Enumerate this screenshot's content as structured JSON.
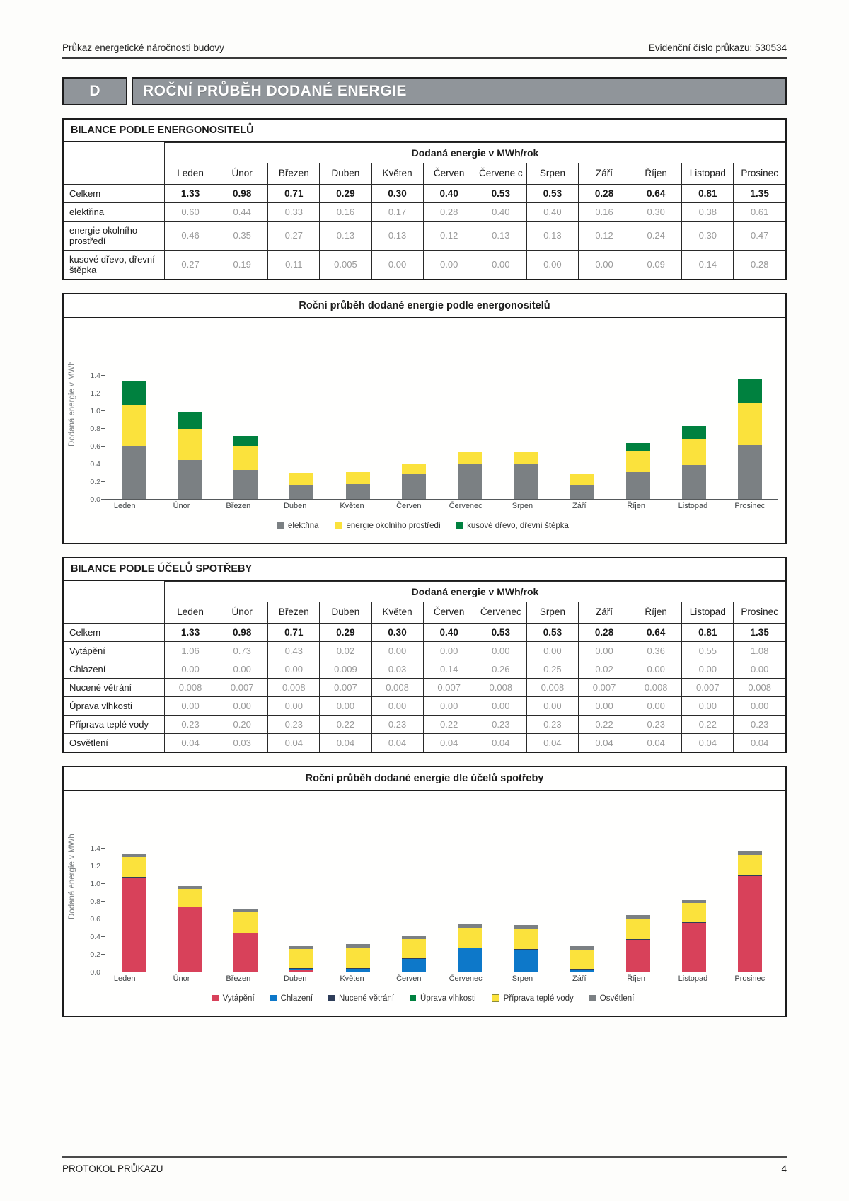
{
  "page": {
    "header_left": "Průkaz energetické náročnosti budovy",
    "header_right": "Evidenční číslo průkazu: 530534",
    "footer_left": "PROTOKOL PRŮKAZU",
    "footer_page": "4"
  },
  "section": {
    "letter": "D",
    "title": "ROČNÍ PRŮBĚH DODANÉ ENERGIE"
  },
  "months": [
    "Leden",
    "Únor",
    "Březen",
    "Duben",
    "Květen",
    "Červen",
    "Červenec",
    "Srpen",
    "Září",
    "Říjen",
    "Listopad",
    "Prosinec"
  ],
  "table1": {
    "title": "BILANCE PODLE ENERGONOSITELŮ",
    "unit_header": "Dodaná energie v MWh/rok",
    "months": [
      "Leden",
      "Únor",
      "Březen",
      "Duben",
      "Květen",
      "Červen",
      "Červene c",
      "Srpen",
      "Září",
      "Říjen",
      "Listopad",
      "Prosinec"
    ],
    "rows": [
      {
        "label": "Celkem",
        "bold": true,
        "values": [
          "1.33",
          "0.98",
          "0.71",
          "0.29",
          "0.30",
          "0.40",
          "0.53",
          "0.53",
          "0.28",
          "0.64",
          "0.81",
          "1.35"
        ]
      },
      {
        "label": "elektřina",
        "bold": false,
        "values": [
          "0.60",
          "0.44",
          "0.33",
          "0.16",
          "0.17",
          "0.28",
          "0.40",
          "0.40",
          "0.16",
          "0.30",
          "0.38",
          "0.61"
        ]
      },
      {
        "label": "energie okolního prostředí",
        "bold": false,
        "values": [
          "0.46",
          "0.35",
          "0.27",
          "0.13",
          "0.13",
          "0.12",
          "0.13",
          "0.13",
          "0.12",
          "0.24",
          "0.30",
          "0.47"
        ]
      },
      {
        "label": "kusové dřevo, dřevní štěpka",
        "bold": false,
        "values": [
          "0.27",
          "0.19",
          "0.11",
          "0.005",
          "0.00",
          "0.00",
          "0.00",
          "0.00",
          "0.00",
          "0.09",
          "0.14",
          "0.28"
        ]
      }
    ]
  },
  "table2": {
    "title": "BILANCE PODLE ÚČELŮ SPOTŘEBY",
    "unit_header": "Dodaná energie v MWh/rok",
    "months": [
      "Leden",
      "Únor",
      "Březen",
      "Duben",
      "Květen",
      "Červen",
      "Červenec",
      "Srpen",
      "Září",
      "Říjen",
      "Listopad",
      "Prosinec"
    ],
    "rows": [
      {
        "label": "Celkem",
        "bold": true,
        "values": [
          "1.33",
          "0.98",
          "0.71",
          "0.29",
          "0.30",
          "0.40",
          "0.53",
          "0.53",
          "0.28",
          "0.64",
          "0.81",
          "1.35"
        ]
      },
      {
        "label": "Vytápění",
        "bold": false,
        "values": [
          "1.06",
          "0.73",
          "0.43",
          "0.02",
          "0.00",
          "0.00",
          "0.00",
          "0.00",
          "0.00",
          "0.36",
          "0.55",
          "1.08"
        ]
      },
      {
        "label": "Chlazení",
        "bold": false,
        "values": [
          "0.00",
          "0.00",
          "0.00",
          "0.009",
          "0.03",
          "0.14",
          "0.26",
          "0.25",
          "0.02",
          "0.00",
          "0.00",
          "0.00"
        ]
      },
      {
        "label": "Nucené větrání",
        "bold": false,
        "values": [
          "0.008",
          "0.007",
          "0.008",
          "0.007",
          "0.008",
          "0.007",
          "0.008",
          "0.008",
          "0.007",
          "0.008",
          "0.007",
          "0.008"
        ]
      },
      {
        "label": "Úprava vlhkosti",
        "bold": false,
        "values": [
          "0.00",
          "0.00",
          "0.00",
          "0.00",
          "0.00",
          "0.00",
          "0.00",
          "0.00",
          "0.00",
          "0.00",
          "0.00",
          "0.00"
        ]
      },
      {
        "label": "Příprava teplé vody",
        "bold": false,
        "values": [
          "0.23",
          "0.20",
          "0.23",
          "0.22",
          "0.23",
          "0.22",
          "0.23",
          "0.23",
          "0.22",
          "0.23",
          "0.22",
          "0.23"
        ]
      },
      {
        "label": "Osvětlení",
        "bold": false,
        "values": [
          "0.04",
          "0.03",
          "0.04",
          "0.04",
          "0.04",
          "0.04",
          "0.04",
          "0.04",
          "0.04",
          "0.04",
          "0.04",
          "0.04"
        ]
      }
    ]
  },
  "chart_data": [
    {
      "type": "bar",
      "stacked": true,
      "title": "Roční průběh dodané energie podle energonositelů",
      "ylabel": "Dodaná energie v MWh",
      "ylim": [
        0,
        1.4
      ],
      "ytick_step": 0.2,
      "grid": false,
      "legend_position": "bottom",
      "categories": [
        "Leden",
        "Únor",
        "Březen",
        "Duben",
        "Květen",
        "Červen",
        "Červenec",
        "Srpen",
        "Září",
        "Říjen",
        "Listopad",
        "Prosinec"
      ],
      "series": [
        {
          "name": "elektřina",
          "color": "#7b8083",
          "values": [
            0.6,
            0.44,
            0.33,
            0.16,
            0.17,
            0.28,
            0.4,
            0.4,
            0.16,
            0.3,
            0.38,
            0.61
          ]
        },
        {
          "name": "energie okolního prostředí",
          "color": "#fbe23c",
          "outline": "#8c8c3a",
          "values": [
            0.46,
            0.35,
            0.27,
            0.13,
            0.13,
            0.12,
            0.13,
            0.13,
            0.12,
            0.24,
            0.3,
            0.47
          ]
        },
        {
          "name": "kusové dřevo, dřevní štěpka",
          "color": "#00813f",
          "values": [
            0.27,
            0.19,
            0.11,
            0.005,
            0.0,
            0.0,
            0.0,
            0.0,
            0.0,
            0.09,
            0.14,
            0.28
          ]
        }
      ]
    },
    {
      "type": "bar",
      "stacked": true,
      "title": "Roční průběh dodané energie dle účelů spotřeby",
      "ylabel": "Dodaná energie v MWh",
      "ylim": [
        0,
        1.4
      ],
      "ytick_step": 0.2,
      "grid": false,
      "legend_position": "bottom",
      "categories": [
        "Leden",
        "Únor",
        "Březen",
        "Duben",
        "Květen",
        "Červen",
        "Červenec",
        "Srpen",
        "Září",
        "Říjen",
        "Listopad",
        "Prosinec"
      ],
      "series": [
        {
          "name": "Vytápění",
          "color": "#d8415a",
          "values": [
            1.06,
            0.73,
            0.43,
            0.02,
            0.0,
            0.0,
            0.0,
            0.0,
            0.0,
            0.36,
            0.55,
            1.08
          ]
        },
        {
          "name": "Chlazení",
          "color": "#0d78c9",
          "values": [
            0.0,
            0.0,
            0.0,
            0.009,
            0.03,
            0.14,
            0.26,
            0.25,
            0.02,
            0.0,
            0.0,
            0.0
          ]
        },
        {
          "name": "Nucené větrání",
          "color": "#2e3d59",
          "values": [
            0.008,
            0.007,
            0.008,
            0.007,
            0.008,
            0.007,
            0.008,
            0.008,
            0.007,
            0.008,
            0.007,
            0.008
          ]
        },
        {
          "name": "Úprava vlhkosti",
          "color": "#00813f",
          "values": [
            0,
            0,
            0,
            0,
            0,
            0,
            0,
            0,
            0,
            0,
            0,
            0
          ]
        },
        {
          "name": "Příprava teplé vody",
          "color": "#fbe23c",
          "outline": "#8c8c3a",
          "values": [
            0.23,
            0.2,
            0.23,
            0.22,
            0.23,
            0.22,
            0.23,
            0.23,
            0.22,
            0.23,
            0.22,
            0.23
          ]
        },
        {
          "name": "Osvětlení",
          "color": "#7b8083",
          "values": [
            0.04,
            0.03,
            0.04,
            0.04,
            0.04,
            0.04,
            0.04,
            0.04,
            0.04,
            0.04,
            0.04,
            0.04
          ]
        }
      ]
    }
  ]
}
